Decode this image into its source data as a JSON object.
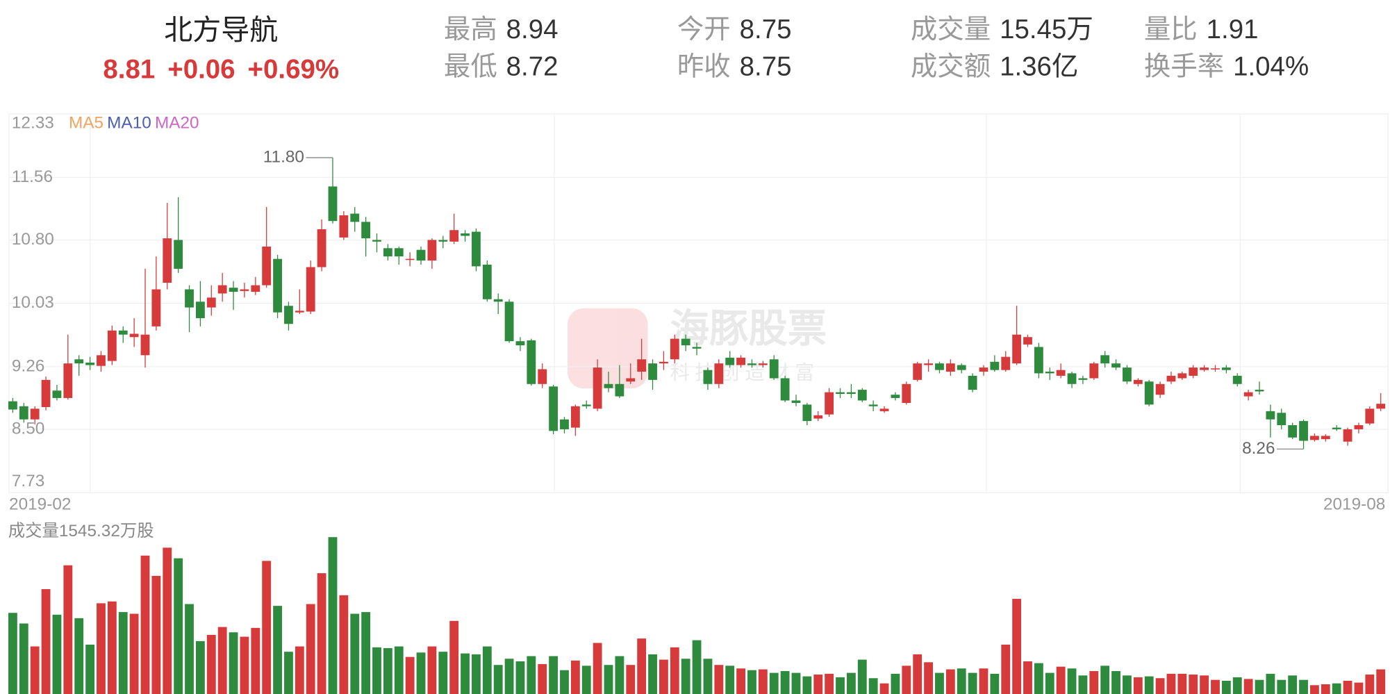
{
  "quote": {
    "name": "北方导航",
    "price": "8.81",
    "change": "+0.06",
    "change_pct": "+0.69%",
    "stats": [
      {
        "label": "最高",
        "value": "8.94"
      },
      {
        "label": "最低",
        "value": "8.72"
      },
      {
        "label": "今开",
        "value": "8.75"
      },
      {
        "label": "昨收",
        "value": "8.75"
      },
      {
        "label": "成交量",
        "value": "15.45万"
      },
      {
        "label": "成交额",
        "value": "1.36亿"
      },
      {
        "label": "量比",
        "value": "1.91"
      },
      {
        "label": "换手率",
        "value": "1.04%"
      }
    ]
  },
  "chart_data": {
    "type": "candlestick",
    "legend": [
      {
        "name": "MA5",
        "color": "#f4a460"
      },
      {
        "name": "MA10",
        "color": "#4a5fb0"
      },
      {
        "name": "MA20",
        "color": "#cc66cc"
      }
    ],
    "watermark": {
      "title": "海豚股票",
      "subtitle": "科技创造财富"
    },
    "up_color": "#d63a3a",
    "down_color": "#2e8b3e",
    "ylim": [
      7.73,
      12.33
    ],
    "yticks": [
      12.33,
      11.56,
      {
        "value": 10.8,
        "label": "10.80"
      },
      10.03,
      9.26,
      {
        "value": 8.5,
        "label": "8.50"
      },
      7.73
    ],
    "grid": true,
    "annotations": [
      {
        "value": 11.8,
        "label": "11.80"
      },
      {
        "value": 8.26,
        "label": "8.26"
      }
    ],
    "categories": [
      "2019-02",
      null,
      null,
      null,
      null,
      null,
      null,
      null,
      null,
      null,
      null,
      null,
      null,
      null,
      null,
      null,
      null,
      null,
      null,
      null,
      null,
      null,
      null,
      null,
      null,
      null,
      null,
      null,
      null,
      null,
      null,
      null,
      null,
      null,
      null,
      null,
      null,
      null,
      null,
      null,
      null,
      null,
      null,
      null,
      null,
      null,
      null,
      null,
      null,
      null,
      null,
      null,
      null,
      null,
      null,
      null,
      null,
      null,
      null,
      null,
      null,
      null,
      null,
      null,
      null,
      null,
      null,
      null,
      null,
      null,
      null,
      null,
      null,
      null,
      null,
      null,
      null,
      null,
      null,
      null,
      null,
      null,
      null,
      null,
      null,
      null,
      null,
      null,
      null,
      null,
      null,
      null,
      null,
      null,
      null,
      null,
      null,
      null,
      null,
      null,
      null,
      null,
      null,
      null,
      null,
      null,
      null,
      null,
      null,
      null,
      null,
      null,
      null,
      null,
      null,
      null,
      null,
      null,
      null,
      null,
      null,
      null,
      null,
      null,
      "2019-08"
    ],
    "open": [
      8.84,
      8.78,
      8.62,
      8.77,
      8.97,
      8.88,
      9.35,
      9.31,
      9.27,
      9.33,
      9.7,
      9.62,
      9.4,
      9.75,
      10.28,
      10.8,
      10.2,
      10.05,
      9.98,
      10.15,
      10.22,
      10.18,
      10.17,
      10.25,
      10.57,
      10.0,
      9.92,
      9.93,
      10.47,
      11.45,
      10.83,
      11.12,
      11.02,
      10.8,
      10.7,
      10.7,
      10.56,
      10.68,
      10.55,
      10.8,
      10.78,
      10.88,
      10.9,
      10.5,
      10.08,
      10.05,
      9.57,
      9.58,
      9.05,
      9.02,
      8.62,
      8.52,
      8.8,
      8.75,
      9.05,
      9.05,
      9.08,
      9.2,
      9.3,
      9.3,
      9.35,
      9.6,
      9.5,
      9.22,
      9.05,
      9.37,
      9.28,
      9.3,
      9.28,
      9.35,
      9.12,
      8.85,
      8.8,
      8.63,
      8.68,
      8.95,
      8.95,
      8.98,
      8.8,
      8.72,
      8.92,
      8.82,
      9.1,
      9.28,
      9.3,
      9.2,
      9.28,
      9.15,
      9.2,
      9.32,
      9.22,
      9.3,
      9.53,
      9.5,
      9.2,
      9.15,
      9.18,
      9.12,
      9.12,
      9.4,
      9.3,
      9.25,
      9.05,
      9.08,
      8.92,
      9.08,
      9.12,
      9.15,
      9.22,
      9.23,
      9.25,
      9.15,
      8.9,
      8.98,
      8.72,
      8.7,
      8.55,
      8.6,
      8.37,
      8.38,
      8.52,
      8.35,
      8.5,
      8.57,
      8.75
    ],
    "high": [
      8.88,
      8.82,
      8.78,
      9.14,
      9.04,
      9.65,
      9.4,
      9.38,
      9.45,
      9.76,
      9.75,
      9.85,
      10.45,
      10.6,
      11.25,
      11.32,
      10.25,
      10.3,
      10.25,
      10.4,
      10.3,
      10.28,
      10.35,
      11.2,
      10.62,
      10.05,
      10.2,
      10.55,
      11.05,
      11.8,
      11.15,
      11.2,
      11.08,
      10.88,
      10.75,
      10.72,
      10.65,
      10.72,
      10.82,
      10.85,
      11.12,
      10.92,
      10.94,
      10.55,
      10.15,
      10.08,
      9.62,
      9.6,
      9.3,
      9.04,
      8.65,
      8.8,
      8.85,
      9.35,
      9.2,
      9.28,
      9.3,
      9.6,
      9.35,
      9.45,
      9.65,
      9.65,
      9.55,
      9.25,
      9.35,
      9.45,
      9.4,
      9.35,
      9.33,
      9.4,
      9.15,
      8.92,
      8.82,
      8.72,
      9.0,
      9.0,
      9.05,
      9.0,
      8.85,
      8.78,
      8.95,
      9.08,
      9.32,
      9.35,
      9.32,
      9.35,
      9.3,
      9.18,
      9.28,
      9.4,
      9.45,
      10.0,
      9.65,
      9.55,
      9.25,
      9.3,
      9.2,
      9.15,
      9.32,
      9.45,
      9.35,
      9.28,
      9.12,
      9.1,
      9.08,
      9.2,
      9.2,
      9.28,
      9.28,
      9.28,
      9.28,
      9.18,
      8.98,
      9.08,
      8.8,
      8.75,
      8.58,
      8.62,
      8.45,
      8.44,
      8.55,
      8.52,
      8.58,
      8.78,
      8.94
    ],
    "low": [
      8.7,
      8.58,
      8.56,
      8.73,
      8.85,
      8.86,
      9.15,
      9.22,
      9.2,
      9.28,
      9.55,
      9.5,
      9.25,
      9.7,
      10.2,
      10.4,
      9.68,
      9.75,
      9.88,
      10.05,
      9.95,
      10.1,
      10.13,
      10.22,
      9.85,
      9.7,
      9.9,
      9.9,
      10.42,
      11.0,
      10.8,
      10.9,
      10.6,
      10.65,
      10.55,
      10.5,
      10.48,
      10.5,
      10.45,
      10.7,
      10.75,
      10.78,
      10.42,
      10.05,
      9.9,
      9.55,
      9.45,
      9.03,
      9.0,
      8.44,
      8.45,
      8.42,
      8.75,
      8.72,
      8.95,
      8.88,
      9.05,
      9.1,
      8.98,
      9.22,
      9.3,
      9.45,
      9.4,
      8.98,
      9.0,
      9.25,
      9.25,
      9.25,
      9.25,
      9.1,
      8.83,
      8.78,
      8.55,
      8.6,
      8.65,
      8.88,
      8.88,
      8.83,
      8.72,
      8.7,
      8.85,
      8.8,
      9.08,
      9.2,
      9.18,
      9.15,
      9.18,
      8.95,
      9.15,
      9.2,
      9.2,
      9.28,
      9.5,
      9.12,
      9.1,
      9.12,
      9.0,
      9.05,
      9.1,
      9.25,
      9.22,
      9.05,
      9.02,
      8.78,
      8.88,
      9.05,
      9.1,
      9.12,
      9.2,
      9.2,
      9.18,
      9.02,
      8.85,
      8.92,
      8.4,
      8.5,
      8.38,
      8.26,
      8.35,
      8.35,
      8.48,
      8.3,
      8.45,
      8.55,
      8.72
    ],
    "close": [
      8.74,
      8.62,
      8.75,
      9.1,
      8.88,
      9.3,
      9.3,
      9.28,
      9.4,
      9.7,
      9.65,
      9.66,
      9.65,
      10.2,
      10.82,
      10.45,
      9.98,
      9.85,
      10.1,
      10.25,
      10.17,
      10.2,
      10.25,
      10.72,
      9.92,
      9.78,
      9.94,
      10.47,
      10.93,
      11.03,
      11.1,
      11.02,
      10.82,
      10.78,
      10.6,
      10.6,
      10.57,
      10.55,
      10.8,
      10.78,
      10.92,
      10.85,
      10.48,
      10.08,
      10.05,
      9.57,
      9.52,
      9.05,
      9.23,
      8.48,
      8.5,
      8.78,
      8.78,
      9.25,
      9.0,
      8.9,
      9.12,
      9.35,
      9.1,
      9.32,
      9.6,
      9.52,
      9.48,
      9.05,
      9.3,
      9.28,
      9.37,
      9.28,
      9.3,
      9.12,
      8.85,
      8.82,
      8.6,
      8.67,
      8.95,
      8.93,
      8.93,
      8.85,
      8.78,
      8.75,
      8.88,
      9.05,
      9.3,
      9.3,
      9.22,
      9.3,
      9.22,
      8.98,
      9.25,
      9.22,
      9.38,
      9.65,
      9.62,
      9.18,
      9.18,
      9.22,
      9.05,
      9.1,
      9.3,
      9.3,
      9.25,
      9.08,
      9.1,
      8.8,
      9.05,
      9.15,
      9.18,
      9.25,
      9.25,
      9.24,
      9.22,
      9.05,
      8.95,
      8.96,
      8.62,
      8.55,
      8.4,
      8.36,
      8.42,
      8.42,
      8.5,
      8.5,
      8.55,
      8.75,
      8.81
    ],
    "volume_label": "成交量1545.32万股",
    "volume_ylim": [
      0,
      1545.32
    ],
    "volume": [
      718,
      624,
      421,
      928,
      702,
      1139,
      671,
      437,
      803,
      819,
      725,
      710,
      1225,
      1045,
      1295,
      1201,
      796,
      468,
      523,
      593,
      546,
      507,
      585,
      1178,
      780,
      374,
      421,
      796,
      1069,
      1388,
      874,
      710,
      725,
      413,
      406,
      421,
      328,
      367,
      421,
      374,
      647,
      359,
      351,
      421,
      257,
      312,
      289,
      335,
      265,
      335,
      211,
      296,
      250,
      452,
      257,
      335,
      257,
      491,
      351,
      304,
      413,
      312,
      476,
      312,
      257,
      250,
      226,
      211,
      218,
      187,
      203,
      187,
      156,
      172,
      179,
      148,
      187,
      304,
      140,
      94,
      179,
      250,
      351,
      281,
      187,
      218,
      226,
      187,
      226,
      179,
      437,
      842,
      289,
      273,
      187,
      242,
      226,
      164,
      203,
      250,
      203,
      164,
      148,
      156,
      140,
      179,
      179,
      172,
      164,
      125,
      117,
      148,
      133,
      125,
      179,
      125,
      164,
      125,
      78,
      86,
      94,
      117,
      101,
      172,
      218
    ]
  }
}
